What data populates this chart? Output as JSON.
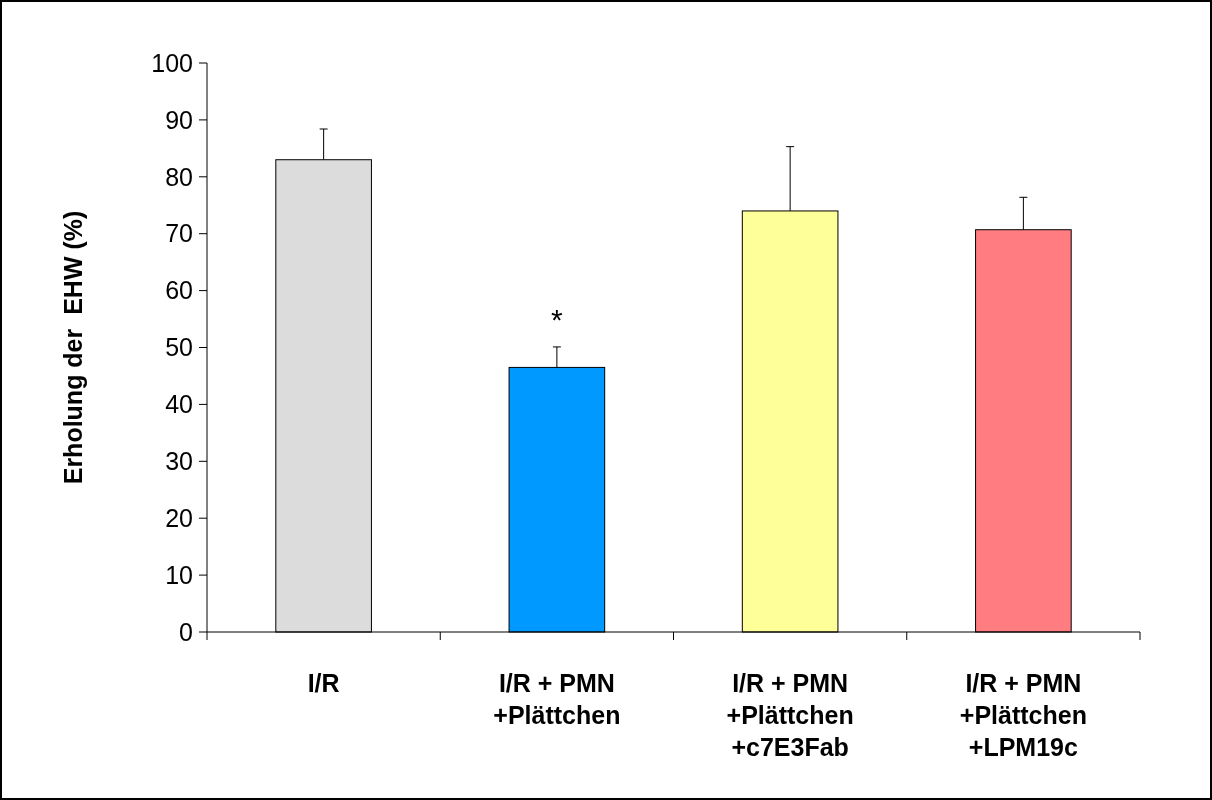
{
  "chart_data": {
    "type": "bar",
    "ylabel": "Erholung der  EHW (%)",
    "categories": [
      "I/R",
      "I/R + PMN\n+Plättchen",
      "I/R + PMN\n+Plättchen\n+c7E3Fab",
      "I/R + PMN\n+Plättchen\n+LPM19c"
    ],
    "values": [
      83,
      46.5,
      74,
      70.7
    ],
    "colors": [
      "#dcdcdc",
      "#0099ff",
      "#ffff99",
      "#ff7c80"
    ],
    "errors": [
      5.4,
      3.6,
      11.3,
      5.7
    ],
    "ylim": [
      0,
      100
    ],
    "yticks": [
      0,
      10,
      20,
      30,
      40,
      50,
      60,
      70,
      80,
      90,
      100
    ],
    "grid": false,
    "annotations": [
      {
        "text": "*",
        "x": "I/R + PMN\n+Plättchen",
        "y": 50.1
      }
    ]
  }
}
